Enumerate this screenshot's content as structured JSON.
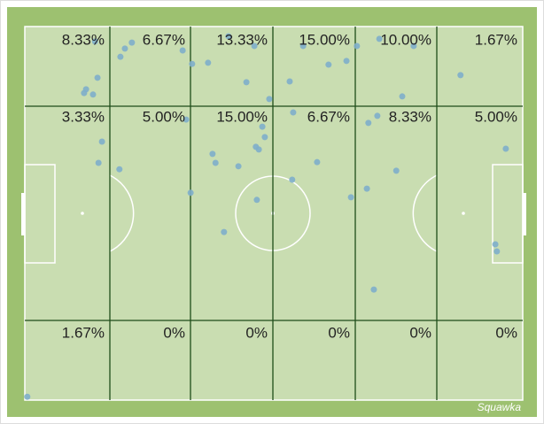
{
  "zones": [
    [
      "8.33%",
      "6.67%",
      "13.33%",
      "15.00%",
      "10.00%",
      "1.67%"
    ],
    [
      "3.33%",
      "5.00%",
      "15.00%",
      "6.67%",
      "8.33%",
      "5.00%"
    ],
    [
      "1.67%",
      "0%",
      "0%",
      "0%",
      "0%",
      "0%"
    ]
  ],
  "points": [
    [
      14.1,
      4.0
    ],
    [
      19.2,
      8.1
    ],
    [
      20.1,
      5.9
    ],
    [
      21.5,
      4.3
    ],
    [
      31.7,
      6.4
    ],
    [
      33.6,
      10.0
    ],
    [
      36.8,
      9.7
    ],
    [
      40.9,
      2.6
    ],
    [
      46.1,
      5.2
    ],
    [
      44.5,
      14.9
    ],
    [
      49.1,
      19.4
    ],
    [
      53.2,
      14.7
    ],
    [
      55.9,
      5.2
    ],
    [
      61.0,
      10.2
    ],
    [
      64.6,
      9.2
    ],
    [
      66.7,
      5.2
    ],
    [
      71.2,
      3.3
    ],
    [
      78.1,
      5.2
    ],
    [
      75.8,
      18.7
    ],
    [
      87.5,
      13.0
    ],
    [
      14.6,
      13.7
    ],
    [
      12.3,
      16.8
    ],
    [
      11.9,
      17.8
    ],
    [
      13.7,
      18.2
    ],
    [
      15.5,
      30.8
    ],
    [
      14.8,
      36.5
    ],
    [
      19.0,
      38.2
    ],
    [
      32.4,
      24.9
    ],
    [
      33.3,
      44.5
    ],
    [
      37.7,
      34.1
    ],
    [
      38.3,
      36.5
    ],
    [
      42.9,
      37.4
    ],
    [
      46.4,
      32.2
    ],
    [
      47.0,
      32.9
    ],
    [
      47.7,
      26.8
    ],
    [
      48.2,
      29.6
    ],
    [
      46.6,
      46.4
    ],
    [
      40.0,
      55.0
    ],
    [
      53.7,
      41.0
    ],
    [
      53.9,
      23.0
    ],
    [
      58.7,
      36.3
    ],
    [
      65.5,
      45.7
    ],
    [
      68.7,
      43.4
    ],
    [
      69.0,
      25.8
    ],
    [
      70.8,
      23.9
    ],
    [
      74.6,
      38.6
    ],
    [
      70.1,
      70.4
    ],
    [
      96.6,
      32.7
    ],
    [
      94.5,
      58.3
    ],
    [
      94.8,
      60.2
    ],
    [
      0.5,
      99.1
    ]
  ],
  "brand": "Squawka"
}
